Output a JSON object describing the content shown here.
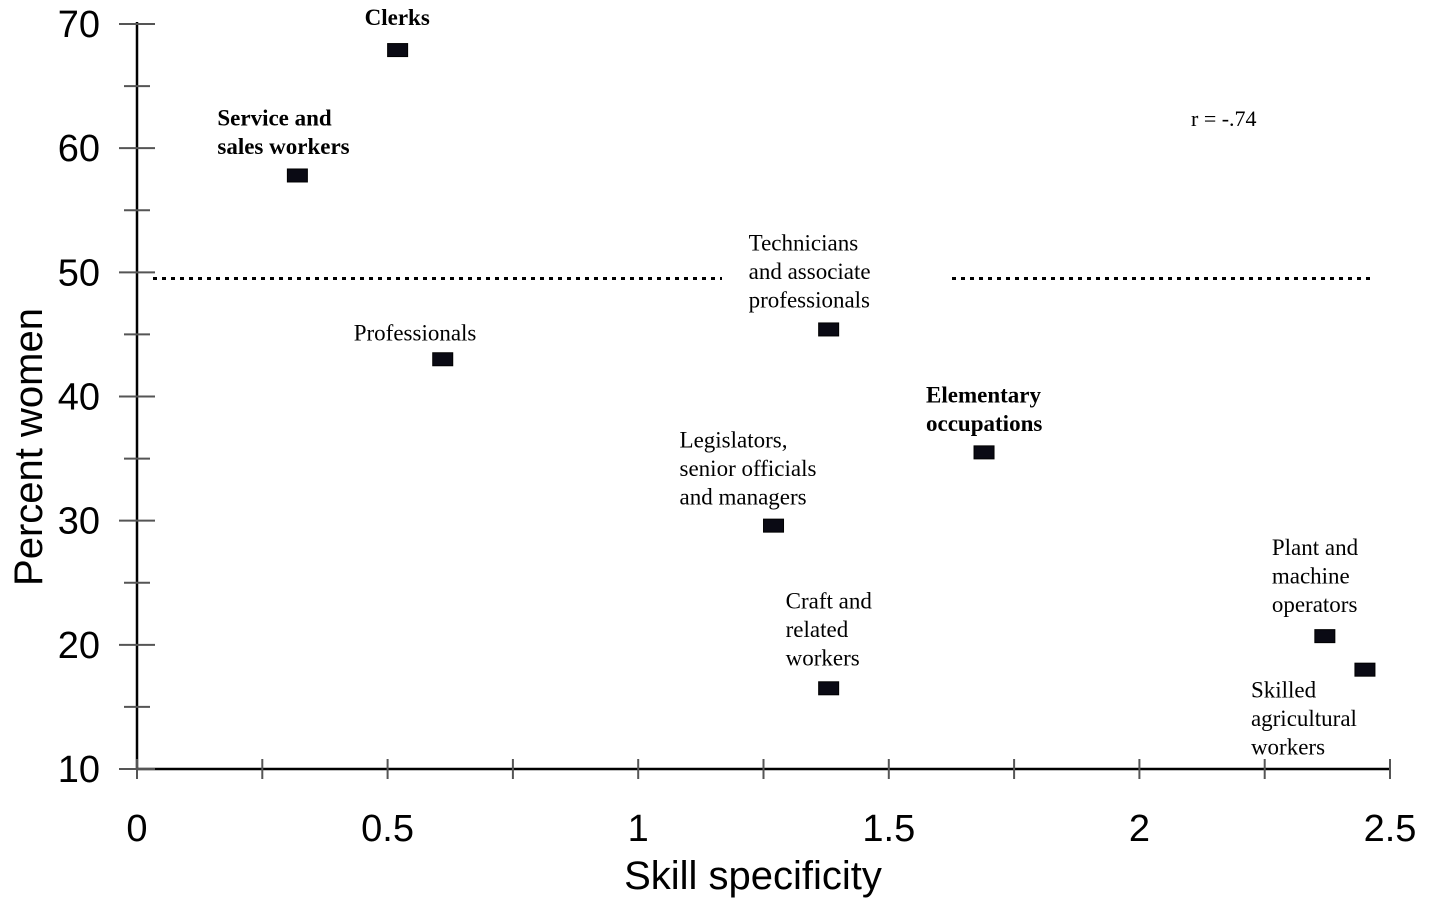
{
  "chart_data": {
    "type": "scatter",
    "xlabel": "Skill specificity",
    "ylabel": "Percent women",
    "xlim": [
      0,
      2.5
    ],
    "ylim": [
      10,
      70
    ],
    "xticks": [
      "0",
      "0.5",
      "1",
      "1.5",
      "2",
      "2.5"
    ],
    "yticks": [
      "10",
      "20",
      "30",
      "40",
      "50",
      "60",
      "70"
    ],
    "grid": false,
    "annotation": "r = -.74",
    "reference_line_y": 49.5,
    "points": [
      {
        "label": [
          "Clerks"
        ],
        "bold": true,
        "x": 0.52,
        "y": 67.9
      },
      {
        "label": [
          "Service and",
          "sales workers"
        ],
        "bold": true,
        "x": 0.32,
        "y": 57.8
      },
      {
        "label": [
          "Professionals"
        ],
        "bold": false,
        "x": 0.61,
        "y": 43.0
      },
      {
        "label": [
          "Technicians",
          "and associate",
          "professionals"
        ],
        "bold": false,
        "x": 1.38,
        "y": 45.4
      },
      {
        "label": [
          "Elementary",
          "occupations"
        ],
        "bold": true,
        "x": 1.69,
        "y": 35.5
      },
      {
        "label": [
          "Legislators,",
          "senior officials",
          "and managers"
        ],
        "bold": false,
        "x": 1.27,
        "y": 29.6
      },
      {
        "label": [
          "Craft and",
          "related",
          "workers"
        ],
        "bold": false,
        "x": 1.38,
        "y": 16.5
      },
      {
        "label": [
          "Plant and",
          "machine",
          "operators"
        ],
        "bold": false,
        "x": 2.37,
        "y": 20.7
      },
      {
        "label": [
          "Skilled",
          "agricultural",
          "workers"
        ],
        "bold": false,
        "x": 2.45,
        "y": 18.0
      }
    ]
  }
}
